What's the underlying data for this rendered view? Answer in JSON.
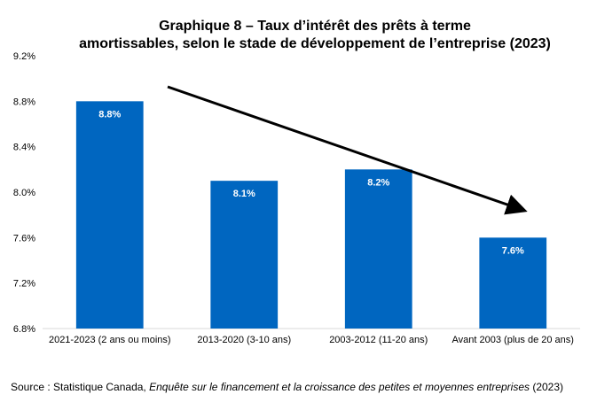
{
  "chart_data": {
    "type": "bar",
    "title_lines": [
      "Graphique 8 – Taux d’intérêt des prêts à terme",
      "amortissables, selon le stade de développement de l’entreprise (2023)"
    ],
    "categories": [
      "2021-2023 (2 ans ou moins)",
      "2013-2020 (3-10 ans)",
      "2003-2012 (11-20 ans)",
      "Avant 2003 (plus de 20 ans)"
    ],
    "values": [
      8.8,
      8.1,
      8.2,
      7.6
    ],
    "data_labels": [
      "8.8%",
      "8.1%",
      "8.2%",
      "7.6%"
    ],
    "ylim": [
      6.8,
      9.2
    ],
    "yticks": [
      6.8,
      7.2,
      7.6,
      8.0,
      8.4,
      8.8,
      9.2
    ],
    "ytick_labels": [
      "6.8%",
      "7.2%",
      "7.6%",
      "8.0%",
      "8.4%",
      "8.8%",
      "9.2%"
    ],
    "bar_color": "#0066c0",
    "label_color": "#ffffff",
    "grid": false,
    "legend": "none",
    "annotation": "downward trend arrow"
  },
  "source": {
    "prefix": "Source : Statistique Canada, ",
    "italic": "Enquête sur le financement et la croissance des petites et moyennes entreprises",
    "suffix": " (2023)"
  }
}
